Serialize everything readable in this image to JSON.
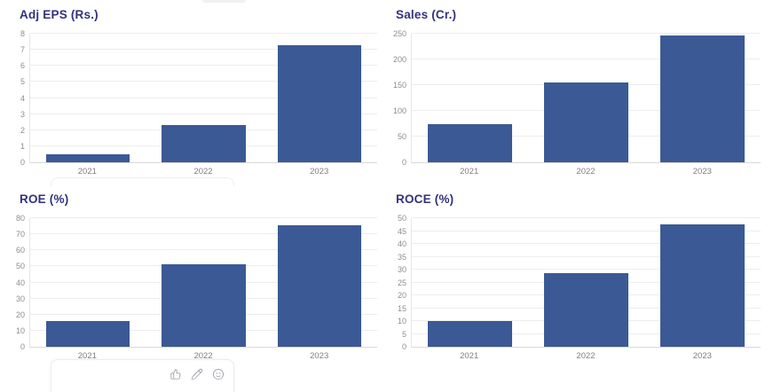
{
  "page": {
    "background": "#ffffff"
  },
  "colors": {
    "bar": "#3b5994",
    "title": "#32327e",
    "tick_label": "#8d8d8d",
    "x_label": "#7f7f7f",
    "gridline": "#ededed",
    "axis_y": "#e6e6e6",
    "axis_x": "#d9d9d9",
    "popup_border": "#ebebeb",
    "icon": "#9ba1ab"
  },
  "chart_data": [
    {
      "type": "bar",
      "title": "Adj EPS (Rs.)",
      "categories": [
        "2021",
        "2022",
        "2023"
      ],
      "values": [
        0.5,
        2.3,
        7.3
      ],
      "xlabel": "",
      "ylabel": "",
      "ylim": [
        0,
        8
      ],
      "ytick_step": 1,
      "grid": true,
      "legend": false
    },
    {
      "type": "bar",
      "title": "Sales (Cr.)",
      "categories": [
        "2021",
        "2022",
        "2023"
      ],
      "values": [
        75,
        155,
        247
      ],
      "xlabel": "",
      "ylabel": "",
      "ylim": [
        0,
        250
      ],
      "ytick_step": 50,
      "grid": true,
      "legend": false
    },
    {
      "type": "bar",
      "title": "ROE (%)",
      "categories": [
        "2021",
        "2022",
        "2023"
      ],
      "values": [
        16,
        51.5,
        75.5
      ],
      "xlabel": "",
      "ylabel": "",
      "ylim": [
        0,
        80
      ],
      "ytick_step": 10,
      "grid": true,
      "legend": false
    },
    {
      "type": "bar",
      "title": "ROCE (%)",
      "categories": [
        "2021",
        "2022",
        "2023"
      ],
      "values": [
        10,
        28.5,
        47.5
      ],
      "xlabel": "",
      "ylabel": "",
      "ylim": [
        0,
        50
      ],
      "ytick_step": 5,
      "grid": true,
      "legend": false
    }
  ],
  "hover_toolbar": {
    "icons": [
      {
        "name": "thumbs-up-icon"
      },
      {
        "name": "pen-icon"
      },
      {
        "name": "smiley-icon"
      }
    ]
  }
}
